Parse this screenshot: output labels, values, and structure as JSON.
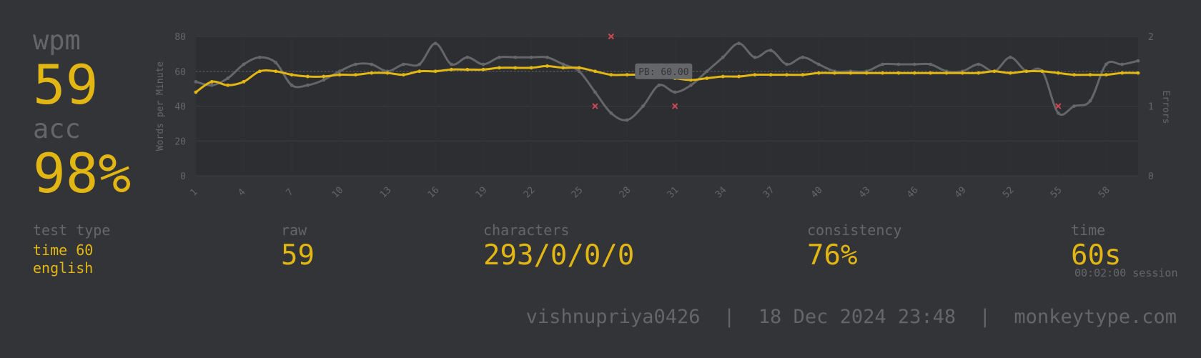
{
  "stats": {
    "wpm_label": "wpm",
    "wpm_value": "59",
    "acc_label": "acc",
    "acc_value": "98%"
  },
  "details": {
    "test_type_label": "test type",
    "test_type_mode": "time 60",
    "test_type_language": "english",
    "raw_label": "raw",
    "raw_value": "59",
    "characters_label": "characters",
    "characters_value": "293/0/0/0",
    "consistency_label": "consistency",
    "consistency_value": "76%",
    "time_label": "time",
    "time_value": "60s",
    "session_note": "00:02:00 session"
  },
  "footer": {
    "username": "vishnupriya0426",
    "datetime": "18 Dec 2024 23:48",
    "site": "monkeytype.com"
  },
  "colors": {
    "background": "#323437",
    "chart_area": "#2c2e31",
    "accent": "#e2b714",
    "muted": "#646669",
    "error": "#ca4754"
  },
  "chart_data": {
    "type": "line",
    "ylabel": "Words per Minute",
    "y2label": "Errors",
    "ylim": [
      0,
      80
    ],
    "y2lim": [
      0,
      2
    ],
    "yticks": [
      0,
      20,
      40,
      60,
      80
    ],
    "y2ticks": [
      0,
      1,
      2
    ],
    "xlim": [
      1,
      60
    ],
    "xticks": [
      1,
      4,
      7,
      10,
      13,
      16,
      19,
      22,
      25,
      28,
      31,
      34,
      37,
      40,
      43,
      46,
      49,
      52,
      55,
      58
    ],
    "grid": true,
    "pb_line": {
      "label": "PB: 60.00",
      "value": 60
    },
    "series": [
      {
        "role": "raw",
        "color": "#646669",
        "values": [
          54,
          52,
          56,
          64,
          68,
          65,
          52,
          52,
          55,
          60,
          64,
          64,
          60,
          64,
          64,
          76,
          64,
          68,
          64,
          68,
          68,
          68,
          68,
          64,
          60,
          48,
          36,
          32,
          40,
          52,
          48,
          52,
          60,
          68,
          76,
          68,
          72,
          64,
          68,
          64,
          60,
          60,
          60,
          64,
          64,
          64,
          64,
          60,
          60,
          64,
          60,
          68,
          60,
          60,
          36,
          40,
          43,
          64,
          64,
          66
        ]
      },
      {
        "role": "wpm",
        "color": "#e2b714",
        "values": [
          48,
          54,
          52,
          54,
          60,
          60,
          58,
          57,
          57,
          58,
          58,
          59,
          59,
          58,
          60,
          60,
          61,
          61,
          61,
          62,
          62,
          62,
          63,
          62,
          62,
          60,
          58,
          58,
          58,
          57,
          56,
          55,
          56,
          57,
          57,
          58,
          58,
          58,
          58,
          59,
          59,
          59,
          59,
          59,
          59,
          59,
          59,
          59,
          59,
          59,
          60,
          59,
          60,
          60,
          59,
          58,
          58,
          58,
          59,
          59
        ]
      }
    ],
    "errors": [
      {
        "x": 26,
        "errors": 1
      },
      {
        "x": 27,
        "errors": 2
      },
      {
        "x": 31,
        "errors": 1
      },
      {
        "x": 55,
        "errors": 1
      }
    ]
  }
}
